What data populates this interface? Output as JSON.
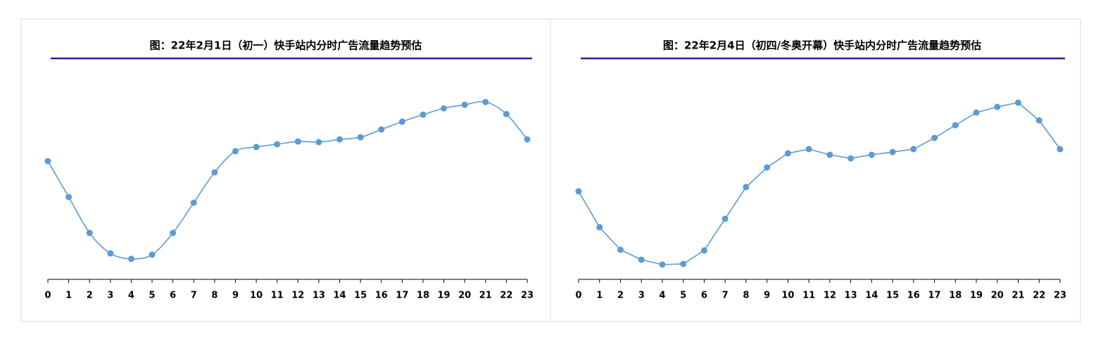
{
  "chart_data": [
    {
      "type": "line",
      "title": "图：22年2月1日（初一）快手站内分时广告流量趋势预估",
      "x": [
        0,
        1,
        2,
        3,
        4,
        5,
        6,
        7,
        8,
        9,
        10,
        11,
        12,
        13,
        14,
        15,
        16,
        17,
        18,
        19,
        20,
        21,
        22,
        23
      ],
      "xlim": [
        0,
        23
      ],
      "ylim": [
        0,
        100
      ],
      "smooth": true,
      "series": [
        {
          "color": "#5b9bd5",
          "values": [
            56,
            39,
            22,
            12.3,
            9.7,
            11.7,
            22,
            36.3,
            50.7,
            60.7,
            62.7,
            64,
            65.3,
            65,
            66.3,
            67.3,
            71,
            74.7,
            78,
            81,
            82.7,
            84,
            78.3,
            66.3
          ]
        }
      ]
    },
    {
      "type": "line",
      "title": "图：22年2月4日（初四/冬奥开幕）快手站内分时广告流量趋势预估",
      "x": [
        0,
        1,
        2,
        3,
        4,
        5,
        6,
        7,
        8,
        9,
        10,
        11,
        12,
        13,
        14,
        15,
        16,
        17,
        18,
        19,
        20,
        21,
        22,
        23
      ],
      "xlim": [
        0,
        23
      ],
      "ylim": [
        0,
        100
      ],
      "smooth": false,
      "series": [
        {
          "color": "#5b9bd5",
          "values": [
            41.7,
            24.7,
            14,
            9.3,
            7,
            7.3,
            13.7,
            28.7,
            43.7,
            53,
            59.7,
            61.7,
            59,
            57.3,
            59,
            60.3,
            61.7,
            67,
            73,
            79,
            81.7,
            83.7,
            75.3,
            61.7
          ]
        }
      ]
    }
  ]
}
